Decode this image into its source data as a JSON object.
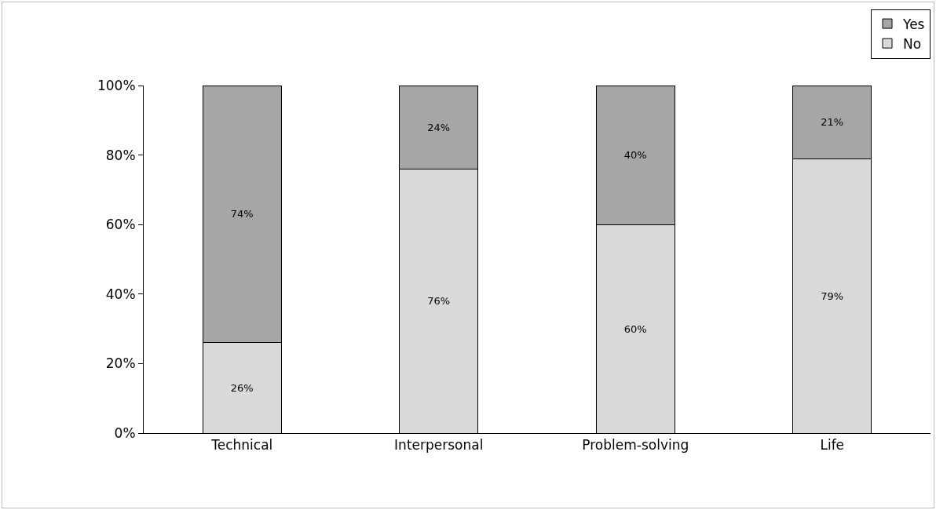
{
  "chart_data": {
    "type": "bar",
    "stacked": true,
    "categories": [
      "Technical",
      "Interpersonal",
      "Problem-solving",
      "Life"
    ],
    "series": [
      {
        "name": "No",
        "color": "#d9d9d9",
        "values": [
          26,
          76,
          60,
          79
        ],
        "value_labels": [
          "26%",
          "76%",
          "60%",
          "79%"
        ]
      },
      {
        "name": "Yes",
        "color": "#a6a6a6",
        "values": [
          74,
          24,
          40,
          21
        ],
        "value_labels": [
          "74%",
          "24%",
          "40%",
          "21%"
        ]
      }
    ],
    "ylim": [
      0,
      100
    ],
    "yticks": [
      {
        "value": 0,
        "label": "0%"
      },
      {
        "value": 20,
        "label": "20%"
      },
      {
        "value": 40,
        "label": "40%"
      },
      {
        "value": 60,
        "label": "60%"
      },
      {
        "value": 80,
        "label": "80%"
      },
      {
        "value": 100,
        "label": "100%"
      }
    ],
    "grid": false,
    "legend": "top right"
  }
}
